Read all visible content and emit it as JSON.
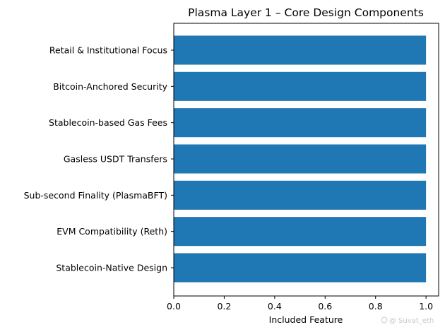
{
  "chart_data": {
    "type": "bar",
    "orientation": "horizontal",
    "title": "Plasma Layer 1 – Core Design Components",
    "xlabel": "Included Feature",
    "ylabel": "",
    "categories": [
      "Stablecoin-Native Design",
      "EVM Compatibility (Reth)",
      "Sub-second Finality (PlasmaBFT)",
      "Gasless USDT Transfers",
      "Stablecoin-based Gas Fees",
      "Bitcoin-Anchored Security",
      "Retail & Institutional Focus"
    ],
    "values": [
      1,
      1,
      1,
      1,
      1,
      1,
      1
    ],
    "xlim": [
      0,
      1.05
    ],
    "xticks": [
      "0.0",
      "0.2",
      "0.4",
      "0.6",
      "0.8",
      "1.0"
    ],
    "grid": false,
    "bar_color": "#1f77b4"
  },
  "watermark": {
    "text": "@ Suvat_eth",
    "icon": "app-logo-icon"
  }
}
